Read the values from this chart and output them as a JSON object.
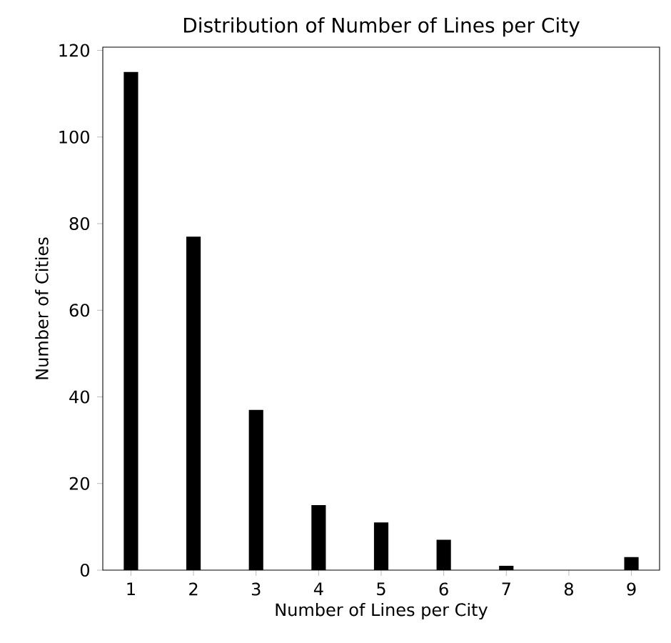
{
  "chart_data": {
    "type": "bar",
    "title": "Distribution of Number of Lines per City",
    "xlabel": "Number of Lines per City",
    "ylabel": "Number of Cities",
    "x": [
      1,
      2,
      3,
      4,
      5,
      6,
      7,
      8,
      9
    ],
    "values": [
      115,
      77,
      37,
      15,
      11,
      7,
      1,
      0,
      3
    ],
    "color": "#000000",
    "xlim": [
      0.55,
      9.45
    ],
    "ylim": [
      0,
      120.75
    ],
    "xticks": [
      1,
      2,
      3,
      4,
      5,
      6,
      7,
      8,
      9
    ],
    "yticks": [
      0,
      20,
      40,
      60,
      80,
      100,
      120
    ]
  }
}
